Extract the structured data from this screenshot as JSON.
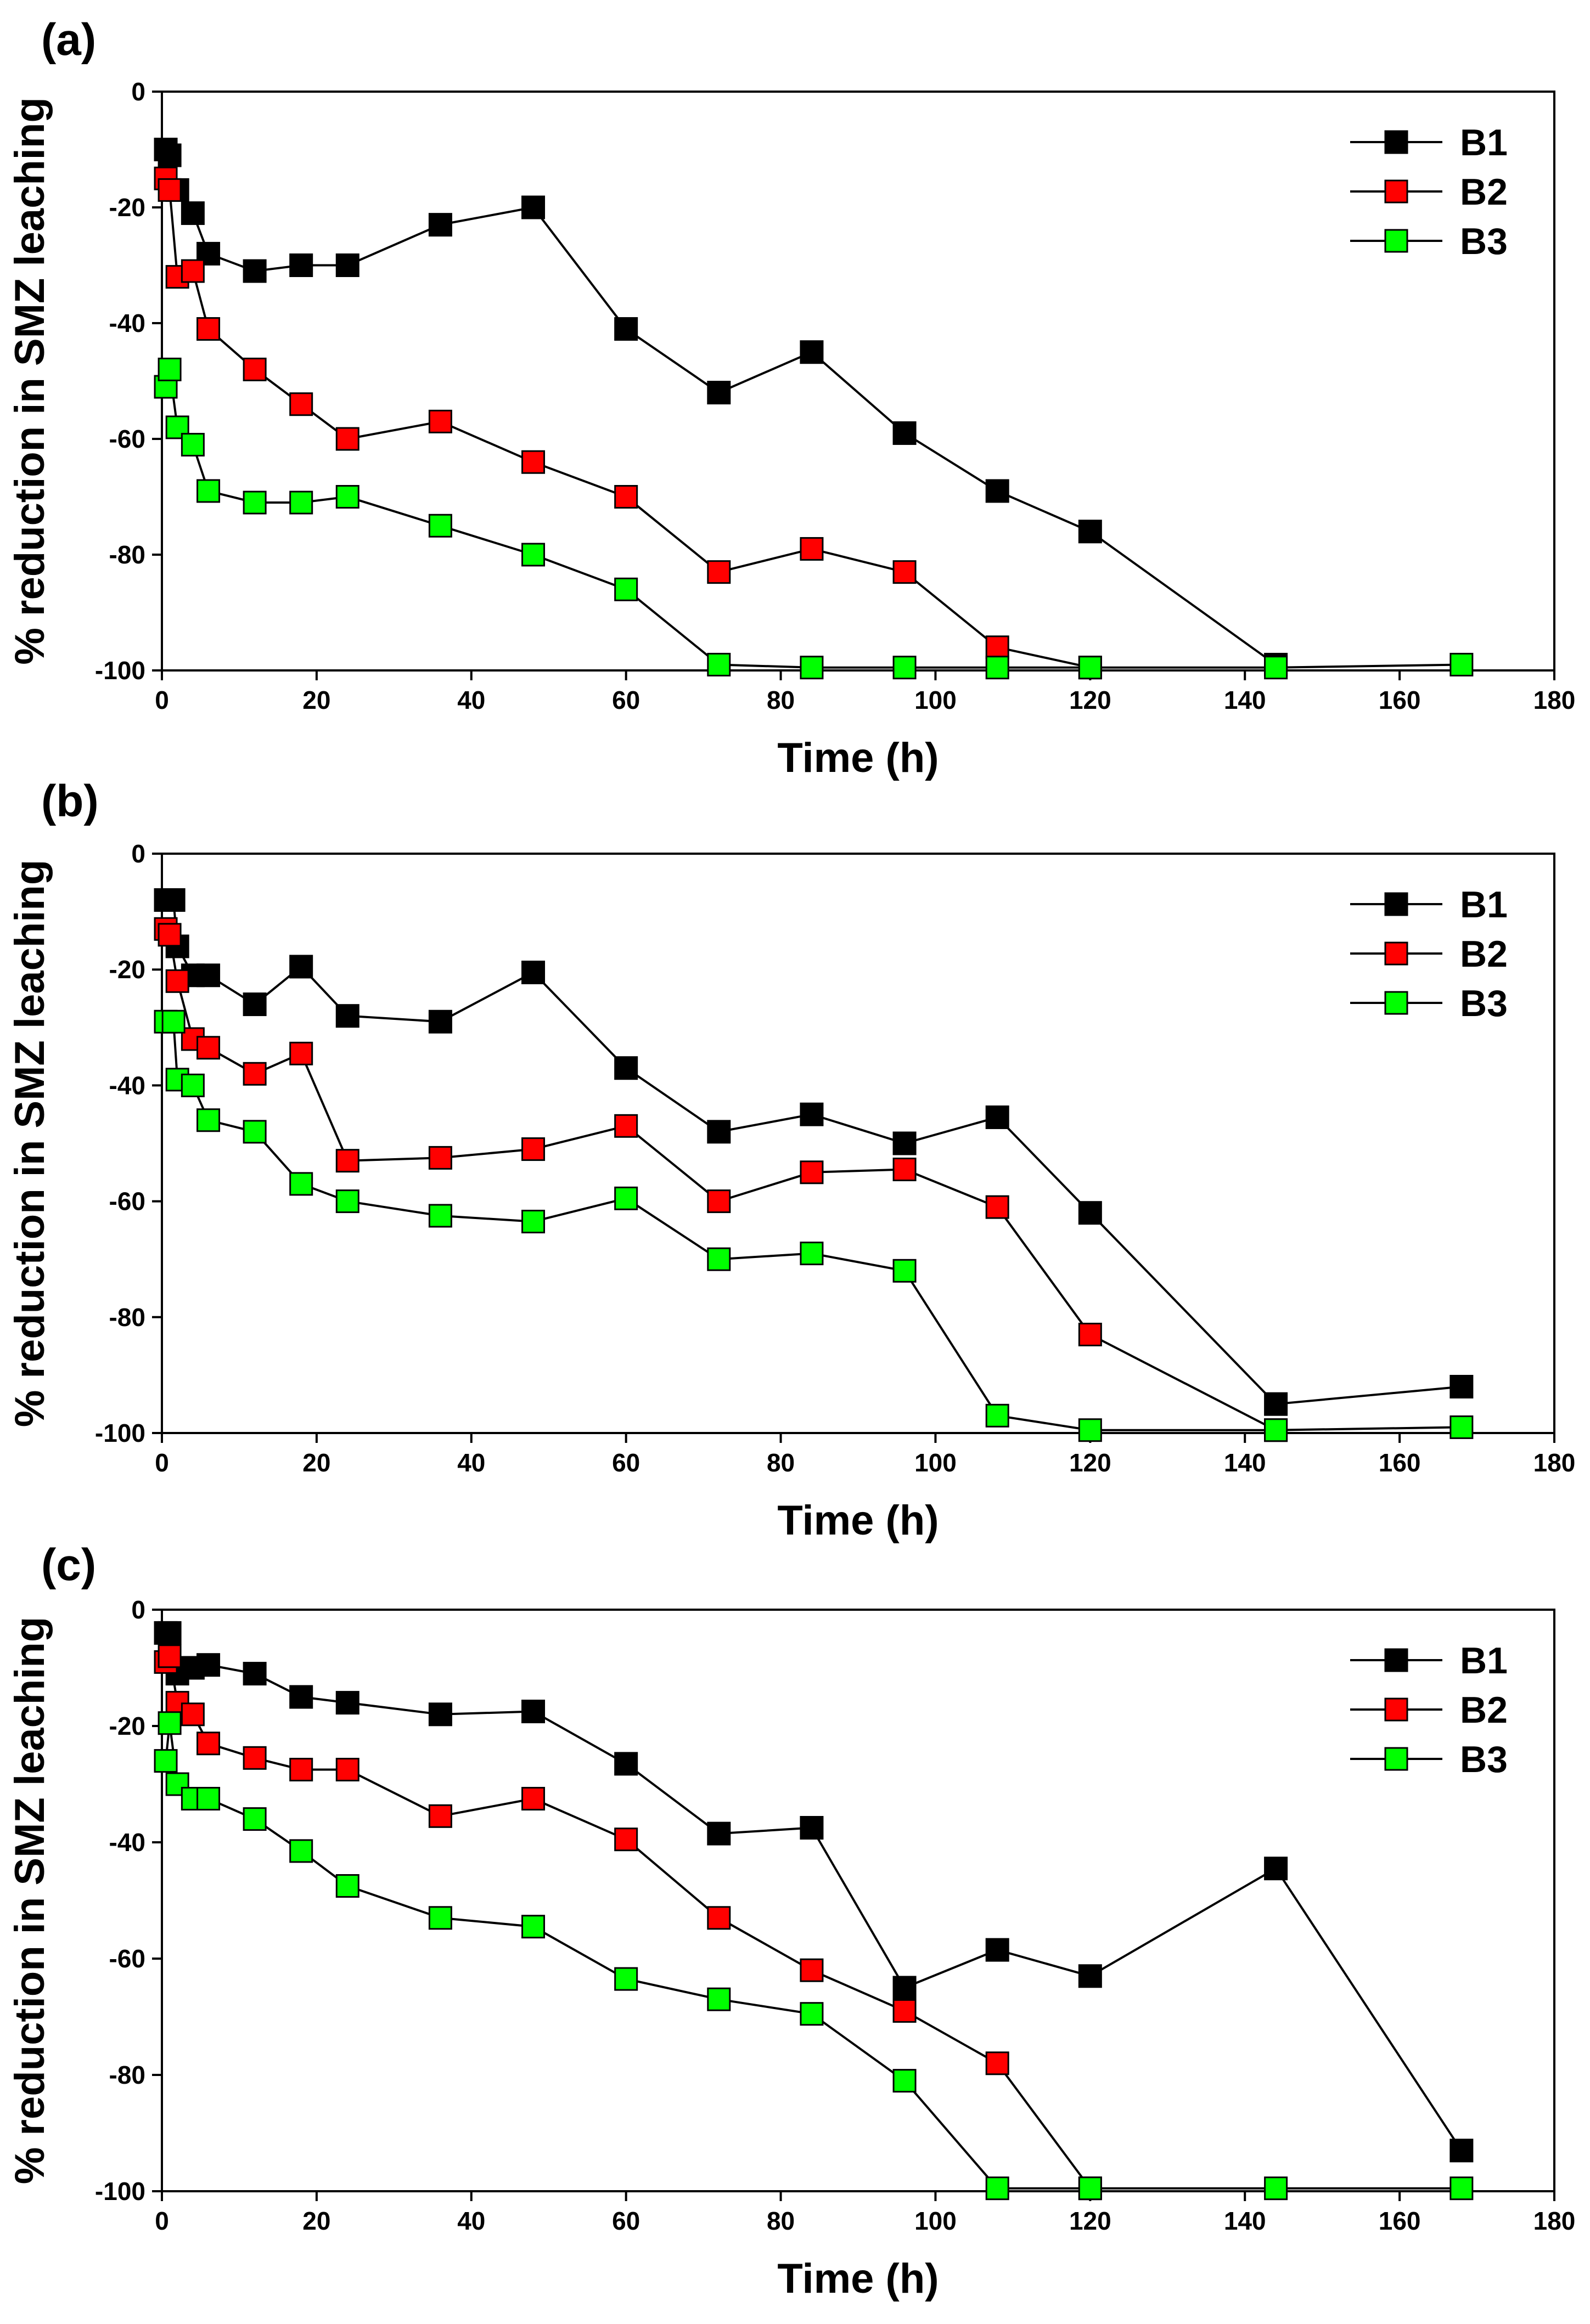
{
  "chart_data": [
    {
      "type": "line",
      "panel_label": "(a)",
      "xlabel": "Time (h)",
      "ylabel": "% reduction in SMZ leaching",
      "xlim": [
        0,
        180
      ],
      "ylim": [
        -100,
        0
      ],
      "xticks": [
        "0",
        "20",
        "40",
        "60",
        "80",
        "100",
        "120",
        "140",
        "160",
        "180"
      ],
      "yticks": [
        "0",
        "-20",
        "-40",
        "-60",
        "-80",
        "-100"
      ],
      "legend_position": "top-right",
      "series": [
        {
          "name": "B1",
          "color": "#000000",
          "x": [
            0.5,
            1,
            2,
            4,
            6,
            12,
            18,
            24,
            36,
            48,
            60,
            72,
            84,
            96,
            108,
            120,
            144
          ],
          "y": [
            -10,
            -11,
            -17,
            -21,
            -28,
            -31,
            -30,
            -30,
            -23,
            -20,
            -41,
            -52,
            -45,
            -59,
            -69,
            -76,
            -99
          ]
        },
        {
          "name": "B2",
          "color": "#ff0000",
          "x": [
            0.5,
            1,
            2,
            4,
            6,
            12,
            18,
            24,
            36,
            48,
            60,
            72,
            84,
            96,
            108,
            120
          ],
          "y": [
            -15,
            -17,
            -32,
            -31,
            -41,
            -48,
            -54,
            -60,
            -57,
            -64,
            -70,
            -83,
            -79,
            -83,
            -96,
            -99.5
          ]
        },
        {
          "name": "B3",
          "color": "#00ff00",
          "x": [
            0.5,
            1,
            2,
            4,
            6,
            12,
            18,
            24,
            36,
            48,
            60,
            72,
            84,
            96,
            108,
            120,
            144,
            168
          ],
          "y": [
            -51,
            -48,
            -58,
            -61,
            -69,
            -71,
            -71,
            -70,
            -75,
            -80,
            -86,
            -99,
            -99.5,
            -99.5,
            -99.5,
            -99.5,
            -99.5,
            -99
          ]
        }
      ]
    },
    {
      "type": "line",
      "panel_label": "(b)",
      "xlabel": "Time (h)",
      "ylabel": "% reduction in SMZ leaching",
      "xlim": [
        0,
        180
      ],
      "ylim": [
        -100,
        0
      ],
      "xticks": [
        "0",
        "20",
        "40",
        "60",
        "80",
        "100",
        "120",
        "140",
        "160",
        "180"
      ],
      "yticks": [
        "0",
        "-20",
        "-40",
        "-60",
        "-80",
        "-100"
      ],
      "legend_position": "top-right",
      "series": [
        {
          "name": "B1",
          "color": "#000000",
          "x": [
            0.5,
            1.5,
            2,
            4,
            6,
            12,
            18,
            24,
            36,
            48,
            60,
            72,
            84,
            96,
            108,
            120,
            144,
            168
          ],
          "y": [
            -8,
            -8,
            -16,
            -21,
            -21,
            -26,
            -19.5,
            -28,
            -29,
            -20.5,
            -37,
            -48,
            -45,
            -50,
            -45.5,
            -62,
            -95,
            -92
          ]
        },
        {
          "name": "B2",
          "color": "#ff0000",
          "x": [
            0.5,
            1,
            2,
            4,
            6,
            12,
            18,
            24,
            36,
            48,
            60,
            72,
            84,
            96,
            108,
            120,
            144
          ],
          "y": [
            -13,
            -14,
            -22,
            -32,
            -33.5,
            -38,
            -34.5,
            -53,
            -52.5,
            -51,
            -47,
            -60,
            -55,
            -54.5,
            -61,
            -83,
            -99.5
          ]
        },
        {
          "name": "B3",
          "color": "#00ff00",
          "x": [
            0.5,
            1.5,
            2,
            4,
            6,
            12,
            18,
            24,
            36,
            48,
            60,
            72,
            84,
            96,
            108,
            120,
            144,
            168
          ],
          "y": [
            -29,
            -29,
            -39,
            -40,
            -46,
            -48,
            -57,
            -60,
            -62.5,
            -63.5,
            -59.5,
            -70,
            -69,
            -72,
            -97,
            -99.5,
            -99.5,
            -99
          ]
        }
      ]
    },
    {
      "type": "line",
      "panel_label": "(c)",
      "xlabel": "Time (h)",
      "ylabel": "% reduction in SMZ leaching",
      "xlim": [
        0,
        180
      ],
      "ylim": [
        -100,
        0
      ],
      "xticks": [
        "0",
        "20",
        "40",
        "60",
        "80",
        "100",
        "120",
        "140",
        "160",
        "180"
      ],
      "yticks": [
        "0",
        "-20",
        "-40",
        "-60",
        "-80",
        "-100"
      ],
      "legend_position": "top-right",
      "series": [
        {
          "name": "B1",
          "color": "#000000",
          "x": [
            0.5,
            1,
            2,
            4,
            6,
            12,
            18,
            24,
            36,
            48,
            60,
            72,
            84,
            96,
            108,
            120,
            144,
            168
          ],
          "y": [
            -4,
            -4,
            -11,
            -10,
            -9.5,
            -11,
            -15,
            -16,
            -18,
            -17.5,
            -26.5,
            -38.5,
            -37.5,
            -65,
            -58.5,
            -63,
            -44.5,
            -93
          ]
        },
        {
          "name": "B2",
          "color": "#ff0000",
          "x": [
            0.5,
            1,
            2,
            4,
            6,
            12,
            18,
            24,
            36,
            48,
            60,
            72,
            84,
            96,
            108,
            120
          ],
          "y": [
            -9,
            -8,
            -16,
            -18,
            -23,
            -25.5,
            -27.5,
            -27.5,
            -35.5,
            -32.5,
            -39.5,
            -53,
            -62,
            -69,
            -78,
            -99.5
          ]
        },
        {
          "name": "B3",
          "color": "#00ff00",
          "x": [
            0.5,
            1,
            2,
            4,
            6,
            12,
            18,
            24,
            36,
            48,
            60,
            72,
            84,
            96,
            108,
            120,
            144,
            168
          ],
          "y": [
            -26,
            -19.5,
            -30,
            -32.5,
            -32.5,
            -36,
            -41.5,
            -47.5,
            -53,
            -54.5,
            -63.5,
            -67,
            -69.5,
            -81,
            -99.5,
            -99.5,
            -99.5,
            -99.5
          ]
        }
      ]
    }
  ]
}
